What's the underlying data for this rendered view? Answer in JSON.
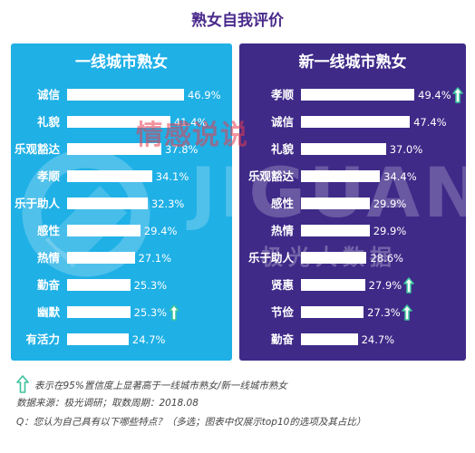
{
  "title": "熟女自我评价",
  "colors": {
    "left_panel": "#1fb0e6",
    "right_panel": "#3f2a88",
    "bar": "#ffffff",
    "significance_arrow": "#3cc39b",
    "title": "#4a2a8c"
  },
  "watermarks": {
    "cn": "情感说说",
    "en": "JIGUANG",
    "sub": "极光大数据"
  },
  "chart_data": [
    {
      "type": "bar",
      "orientation": "horizontal",
      "title": "一线城市熟女",
      "categories": [
        "诚信",
        "礼貌",
        "乐观豁达",
        "孝顺",
        "乐于助人",
        "感性",
        "热情",
        "勤奋",
        "幽默",
        "有活力"
      ],
      "values": [
        46.9,
        41.4,
        37.8,
        34.1,
        32.3,
        29.4,
        27.1,
        25.3,
        25.3,
        24.7
      ],
      "labels": [
        "46.9%",
        "41.4%",
        "37.8%",
        "34.1%",
        "32.3%",
        "29.4%",
        "27.1%",
        "25.3%",
        "25.3%",
        "24.7%"
      ],
      "significant": [
        false,
        false,
        false,
        false,
        false,
        false,
        false,
        false,
        true,
        false
      ],
      "xlim": [
        0,
        60
      ]
    },
    {
      "type": "bar",
      "orientation": "horizontal",
      "title": "新一线城市熟女",
      "categories": [
        "孝顺",
        "诚信",
        "礼貌",
        "乐观豁达",
        "感性",
        "热情",
        "乐于助人",
        "贤惠",
        "节俭",
        "勤奋"
      ],
      "values": [
        49.4,
        47.4,
        37.0,
        34.4,
        29.9,
        29.9,
        28.6,
        27.9,
        27.3,
        24.7
      ],
      "labels": [
        "49.4%",
        "47.4%",
        "37.0%",
        "34.4%",
        "29.9%",
        "29.9%",
        "28.6%",
        "27.9%",
        "27.3%",
        "24.7%"
      ],
      "significant": [
        true,
        false,
        false,
        false,
        false,
        false,
        false,
        true,
        true,
        false
      ],
      "xlim": [
        0,
        60
      ]
    }
  ],
  "footnotes": {
    "legend": "表示在95%置信度上显著高于一线城市熟女/新一线城市熟女",
    "source": "数据来源：极光调研；取数周期：2018.08",
    "question": "Q：您认为自己具有以下哪些特点？（多选；图表中仅展示top10的选项及其占比）"
  }
}
